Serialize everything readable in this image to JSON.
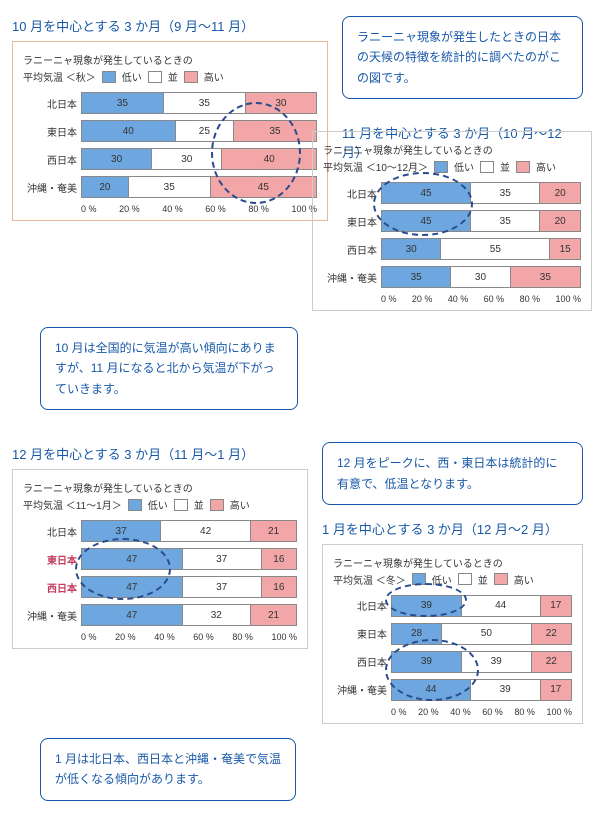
{
  "colors": {
    "low": "#6ea7df",
    "mid": "#ffffff",
    "high": "#f2a6a8",
    "title": "#1858a8",
    "border_oct": "#e8b89b",
    "border_default": "#bcbcbc"
  },
  "legend": {
    "low": "低い",
    "mid": "並",
    "high": "高い"
  },
  "axis_labels": [
    "0 %",
    "20 %",
    "40 %",
    "60 %",
    "80 %",
    "100 %"
  ],
  "callouts": {
    "intro": "ラニーニャ現象が発生したときの日本の天候の特徴を統計的に調べたのがこの図です。",
    "oct": "10 月は全国的に気温が高い傾向にありますが、11 月になると北から気温が下がっていきます。",
    "dec": "12 月をピークに、西・東日本は統計的に有意で、低温となります。",
    "jan": "1 月は北日本、西日本と沖縄・奄美で気温が低くなる傾向があります。"
  },
  "charts": {
    "oct": {
      "title": "10 月を中心とする 3 か月（9 月～11 月）",
      "sub": "ラニーニャ現象が発生しているときの",
      "period": "平均気温 ＜秋＞",
      "rows": [
        {
          "label": "北日本",
          "low": 35,
          "mid": 35,
          "high": 30
        },
        {
          "label": "東日本",
          "low": 40,
          "mid": 25,
          "high": 35
        },
        {
          "label": "西日本",
          "low": 30,
          "mid": 30,
          "high": 40
        },
        {
          "label": "沖縄・奄美",
          "low": 20,
          "mid": 35,
          "high": 45
        }
      ]
    },
    "nov": {
      "title": "11 月を中心とする 3 か月（10 月～12 月）",
      "sub": "ラニーニャ現象が発生しているときの",
      "period": "平均気温 ＜10～12月＞",
      "rows": [
        {
          "label": "北日本",
          "low": 45,
          "mid": 35,
          "high": 20
        },
        {
          "label": "東日本",
          "low": 45,
          "mid": 35,
          "high": 20
        },
        {
          "label": "西日本",
          "low": 30,
          "mid": 55,
          "high": 15
        },
        {
          "label": "沖縄・奄美",
          "low": 35,
          "mid": 30,
          "high": 35
        }
      ]
    },
    "dec": {
      "title": "12 月を中心とする 3 か月（11 月～1 月）",
      "sub": "ラニーニャ現象が発生しているときの",
      "period": "平均気温 ＜11～1月＞",
      "rows": [
        {
          "label": "北日本",
          "low": 37,
          "mid": 42,
          "high": 21
        },
        {
          "label": "東日本",
          "low": 47,
          "mid": 37,
          "high": 16,
          "hl": true
        },
        {
          "label": "西日本",
          "low": 47,
          "mid": 37,
          "high": 16,
          "hl": true
        },
        {
          "label": "沖縄・奄美",
          "low": 47,
          "mid": 32,
          "high": 21
        }
      ]
    },
    "jan": {
      "title": "1 月を中心とする 3 か月（12 月～2 月）",
      "sub": "ラニーニャ現象が発生しているときの",
      "period": "平均気温 ＜冬＞",
      "rows": [
        {
          "label": "北日本",
          "low": 39,
          "mid": 44,
          "high": 17
        },
        {
          "label": "東日本",
          "low": 28,
          "mid": 50,
          "high": 22
        },
        {
          "label": "西日本",
          "low": 39,
          "mid": 39,
          "high": 22
        },
        {
          "label": "沖縄・奄美",
          "low": 44,
          "mid": 39,
          "high": 17
        }
      ]
    }
  }
}
